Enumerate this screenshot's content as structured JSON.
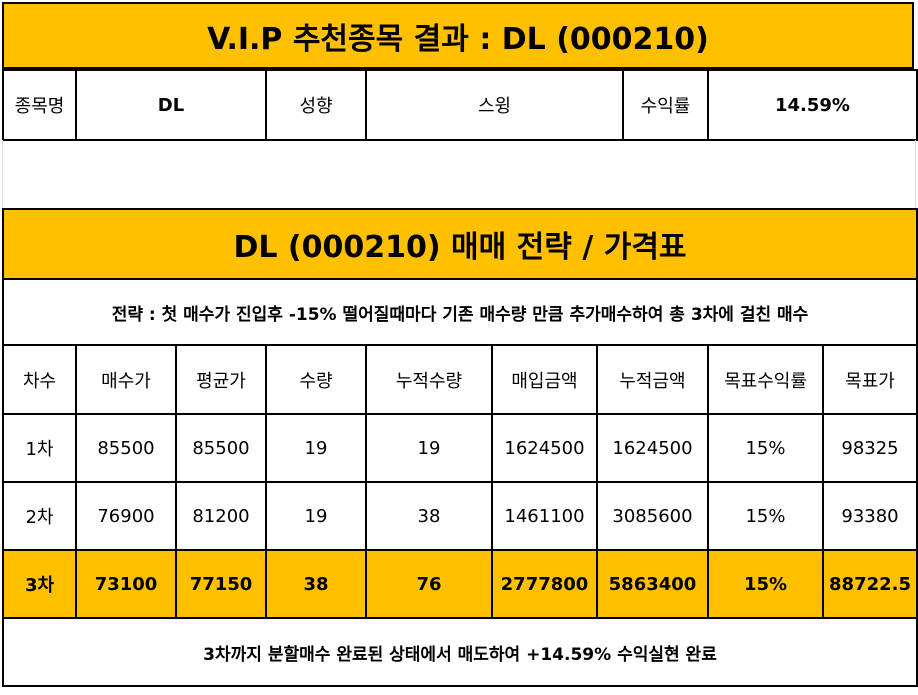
{
  "title": "V.I.P 추천종목 결과 : DL (000210)",
  "info": {
    "name_label": "종목명",
    "name_value": "DL",
    "type_label": "성향",
    "type_value": "스윙",
    "return_label": "수익률",
    "return_value": "14.59%"
  },
  "strategy": {
    "title": "DL (000210) 매매 전략 / 가격표",
    "description": "전략 : 첫 매수가 진입후 -15% 떨어질때마다 기존 매수량 만큼 추가매수하여 총 3차에 걸친 매수",
    "headers": [
      "차수",
      "매수가",
      "평균가",
      "수량",
      "누적수량",
      "매입금액",
      "누적금액",
      "목표수익률",
      "목표가"
    ],
    "rows": [
      [
        "1차",
        "85500",
        "85500",
        "19",
        "19",
        "1624500",
        "1624500",
        "15%",
        "98325"
      ],
      [
        "2차",
        "76900",
        "81200",
        "19",
        "38",
        "1461100",
        "3085600",
        "15%",
        "93380"
      ],
      [
        "3차",
        "73100",
        "77150",
        "38",
        "76",
        "2777800",
        "5863400",
        "15%",
        "88722.5"
      ]
    ],
    "footer": "3차까지 분할매수 완료된 상태에서 매도하여 +14.59% 수익실현 완료"
  },
  "colors": {
    "accent": "#ffc000",
    "border": "#000000"
  }
}
